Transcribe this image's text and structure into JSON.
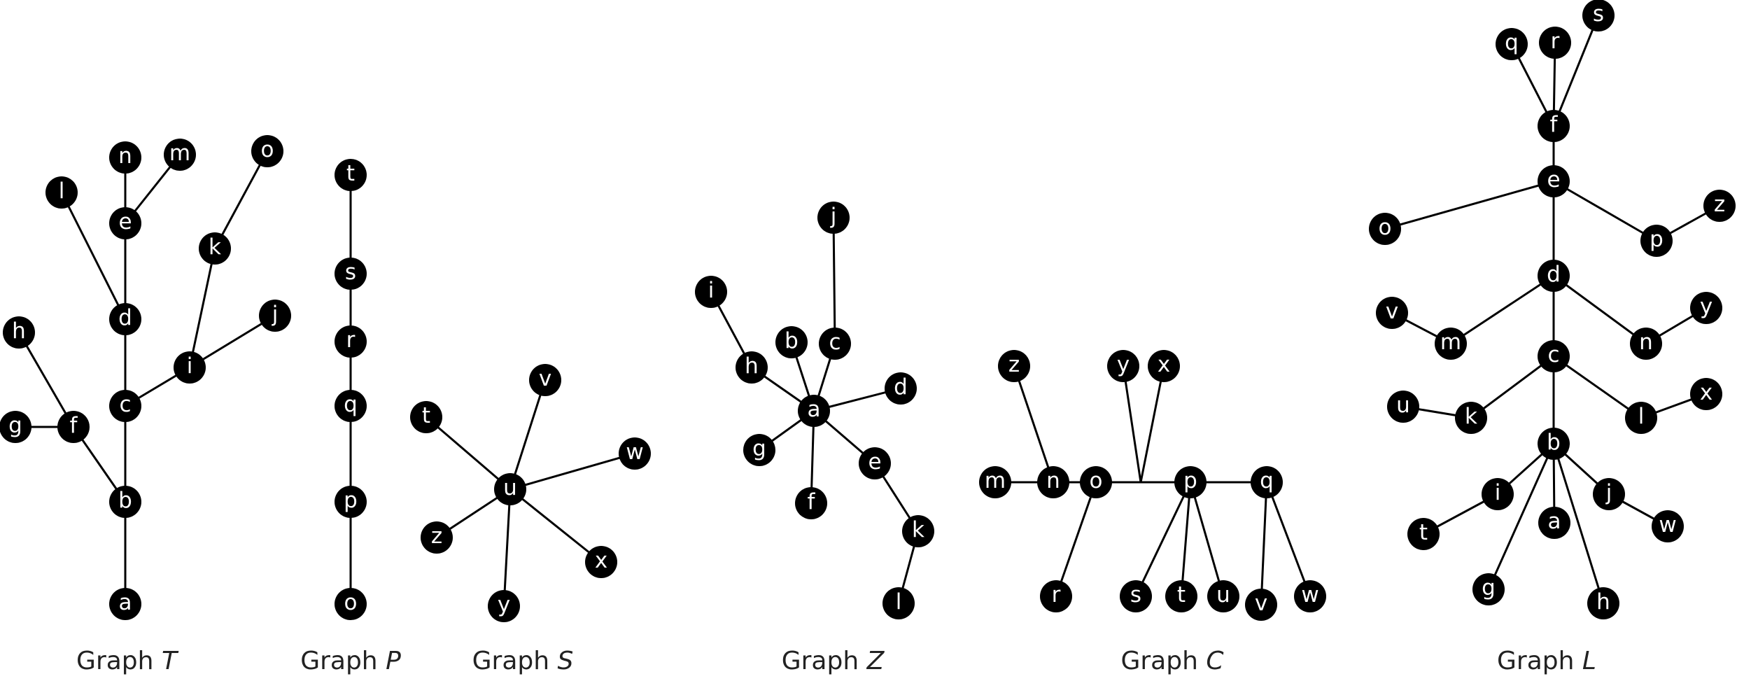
{
  "figure": {
    "background": "#ffffff",
    "node_color": "#000000",
    "label_color": "#ffffff",
    "edge_color": "#000000"
  },
  "graphs": [
    {
      "id": "T",
      "caption_prefix": "Graph",
      "caption_var": "T",
      "nodes": [
        "a",
        "b",
        "c",
        "d",
        "e",
        "f",
        "g",
        "h",
        "i",
        "j",
        "k",
        "l",
        "m",
        "n",
        "o"
      ],
      "edges": [
        [
          "a",
          "b"
        ],
        [
          "b",
          "c"
        ],
        [
          "c",
          "d"
        ],
        [
          "d",
          "e"
        ],
        [
          "e",
          "n"
        ],
        [
          "e",
          "m"
        ],
        [
          "d",
          "l"
        ],
        [
          "b",
          "f"
        ],
        [
          "f",
          "g"
        ],
        [
          "f",
          "h"
        ],
        [
          "c",
          "i"
        ],
        [
          "i",
          "j"
        ],
        [
          "i",
          "k"
        ],
        [
          "k",
          "o"
        ]
      ]
    },
    {
      "id": "P",
      "caption_prefix": "Graph",
      "caption_var": "P",
      "nodes": [
        "o",
        "p",
        "q",
        "r",
        "s",
        "t"
      ],
      "edges": [
        [
          "o",
          "p"
        ],
        [
          "p",
          "q"
        ],
        [
          "q",
          "r"
        ],
        [
          "r",
          "s"
        ],
        [
          "s",
          "t"
        ]
      ]
    },
    {
      "id": "S",
      "caption_prefix": "Graph",
      "caption_var": "S",
      "nodes": [
        "u",
        "t",
        "v",
        "w",
        "x",
        "y",
        "z"
      ],
      "edges": [
        [
          "u",
          "t"
        ],
        [
          "u",
          "v"
        ],
        [
          "u",
          "w"
        ],
        [
          "u",
          "x"
        ],
        [
          "u",
          "y"
        ],
        [
          "u",
          "z"
        ]
      ]
    },
    {
      "id": "Z",
      "caption_prefix": "Graph",
      "caption_var": "Z",
      "nodes": [
        "a",
        "b",
        "c",
        "d",
        "e",
        "f",
        "g",
        "h",
        "i",
        "j",
        "k",
        "l"
      ],
      "edges": [
        [
          "a",
          "b"
        ],
        [
          "a",
          "c"
        ],
        [
          "c",
          "j"
        ],
        [
          "a",
          "d"
        ],
        [
          "a",
          "e"
        ],
        [
          "e",
          "k"
        ],
        [
          "k",
          "l"
        ],
        [
          "a",
          "f"
        ],
        [
          "a",
          "g"
        ],
        [
          "a",
          "h"
        ],
        [
          "h",
          "i"
        ]
      ]
    },
    {
      "id": "C",
      "caption_prefix": "Graph",
      "caption_var": "C",
      "nodes": [
        "m",
        "n",
        "o",
        "p",
        "q",
        "r",
        "s",
        "t",
        "u",
        "v",
        "w",
        "x",
        "y",
        "z"
      ],
      "edges": [
        [
          "m",
          "n"
        ],
        [
          "n",
          "o"
        ],
        [
          "o",
          "p"
        ],
        [
          "p",
          "q"
        ],
        [
          "n",
          "z"
        ],
        [
          "o",
          "r"
        ],
        [
          "p",
          "s"
        ],
        [
          "p",
          "t"
        ],
        [
          "p",
          "u"
        ],
        [
          "q",
          "v"
        ],
        [
          "q",
          "w"
        ]
      ],
      "branch_edges": [
        [
          "y"
        ],
        [
          "x"
        ]
      ]
    },
    {
      "id": "L",
      "caption_prefix": "Graph",
      "caption_var": "L",
      "nodes": [
        "a",
        "b",
        "c",
        "d",
        "e",
        "f",
        "g",
        "h",
        "i",
        "j",
        "k",
        "l",
        "m",
        "n",
        "o",
        "p",
        "q",
        "r",
        "s",
        "t",
        "u",
        "v",
        "w",
        "x",
        "y",
        "z"
      ],
      "edges": [
        [
          "f",
          "q"
        ],
        [
          "f",
          "r"
        ],
        [
          "f",
          "s"
        ],
        [
          "f",
          "e"
        ],
        [
          "e",
          "o"
        ],
        [
          "e",
          "p"
        ],
        [
          "p",
          "z"
        ],
        [
          "e",
          "d"
        ],
        [
          "d",
          "m"
        ],
        [
          "m",
          "v"
        ],
        [
          "d",
          "n"
        ],
        [
          "n",
          "y"
        ],
        [
          "d",
          "c"
        ],
        [
          "c",
          "k"
        ],
        [
          "k",
          "u"
        ],
        [
          "c",
          "l"
        ],
        [
          "l",
          "x"
        ],
        [
          "c",
          "b"
        ],
        [
          "b",
          "i"
        ],
        [
          "i",
          "t"
        ],
        [
          "b",
          "g"
        ],
        [
          "b",
          "a"
        ],
        [
          "b",
          "h"
        ],
        [
          "b",
          "j"
        ],
        [
          "j",
          "w"
        ]
      ]
    }
  ]
}
